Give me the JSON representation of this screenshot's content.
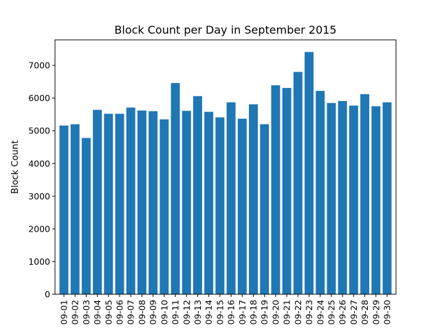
{
  "chart_data": {
    "type": "bar",
    "title": "Block Count per Day in September 2015",
    "xlabel": "",
    "ylabel": "Block Count",
    "categories": [
      "09-01",
      "09-02",
      "09-03",
      "09-04",
      "09-05",
      "09-06",
      "09-07",
      "09-08",
      "09-09",
      "09-10",
      "09-11",
      "09-12",
      "09-13",
      "09-14",
      "09-15",
      "09-16",
      "09-17",
      "09-18",
      "09-19",
      "09-20",
      "09-21",
      "09-22",
      "09-23",
      "09-24",
      "09-25",
      "09-26",
      "09-27",
      "09-28",
      "09-29",
      "09-30"
    ],
    "values": [
      5160,
      5200,
      4780,
      5640,
      5520,
      5520,
      5710,
      5620,
      5600,
      5350,
      6460,
      5610,
      6060,
      5580,
      5410,
      5870,
      5370,
      5810,
      5200,
      6390,
      6310,
      6800,
      7410,
      6220,
      5850,
      5910,
      5770,
      6120,
      5750,
      5870
    ],
    "yticks": [
      0,
      1000,
      2000,
      3000,
      4000,
      5000,
      6000,
      7000
    ],
    "ylim": [
      0,
      7780
    ],
    "bar_color": "#1f77b4",
    "grid": false,
    "legend": "none"
  }
}
